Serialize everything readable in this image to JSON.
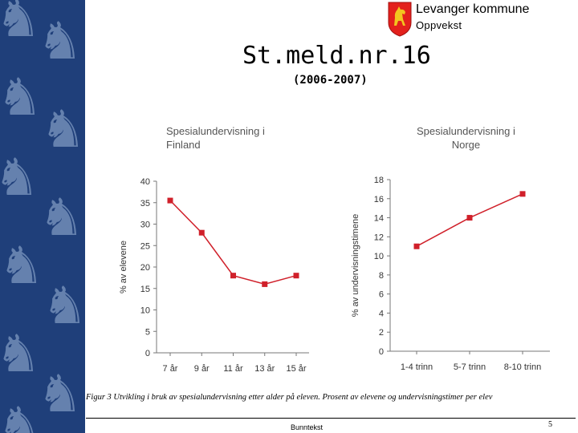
{
  "header": {
    "brand_name": "Levanger kommune",
    "brand_sub": "Oppvekst",
    "title": "St.meld.nr.16",
    "subtitle": "(2006-2007)"
  },
  "chart_data": [
    {
      "type": "line",
      "title": "Spesialundervisning i Finland",
      "title_lines": [
        "Spesialundervisning i",
        "Finland"
      ],
      "categories": [
        "7 år",
        "9 år",
        "11 år",
        "13 år",
        "15 år"
      ],
      "values": [
        35.5,
        28,
        18,
        16,
        18
      ],
      "ylabel": "% av elevene",
      "xlabel": "",
      "ylim": [
        0,
        40
      ],
      "yticks": [
        0,
        5,
        10,
        15,
        20,
        25,
        30,
        35,
        40
      ],
      "color": "#d0202a"
    },
    {
      "type": "line",
      "title": "Spesialundervisning i Norge",
      "title_lines": [
        "Spesialundervisning i",
        "Norge"
      ],
      "categories": [
        "1-4 trinn",
        "5-7 trinn",
        "8-10 trinn"
      ],
      "values": [
        11,
        14,
        16.5
      ],
      "ylabel": "% av undervisningstimene",
      "xlabel": "",
      "ylim": [
        0,
        18
      ],
      "yticks": [
        0,
        2,
        4,
        6,
        8,
        10,
        12,
        14,
        16,
        18
      ],
      "color": "#d0202a"
    }
  ],
  "caption": "Figur 3 Utvikling i bruk av spesialundervisning etter alder på eleven. Prosent av elevene og undervisningstimer  per elev",
  "footer": {
    "text": "Bunntekst",
    "page": "5"
  }
}
